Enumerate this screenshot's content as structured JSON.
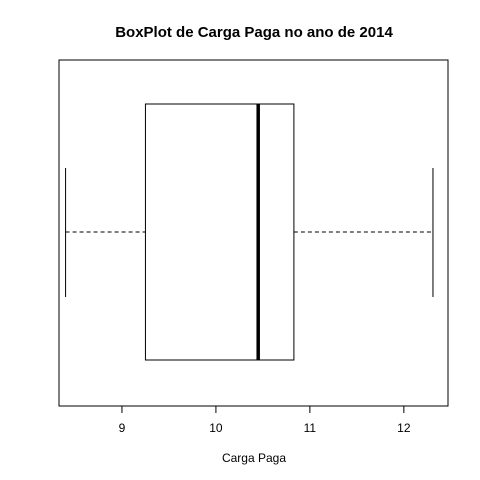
{
  "chart_data": {
    "type": "boxplot",
    "orientation": "horizontal",
    "title": "BoxPlot de Carga Paga no ano de 2014",
    "xlabel": "Carga Paga",
    "ylabel": "",
    "xlim": [
      8.33,
      12.47
    ],
    "ticks": [
      9,
      10,
      11,
      12
    ],
    "tick_labels": [
      "9",
      "10",
      "11",
      "12"
    ],
    "grid": false,
    "legend": false,
    "stats": {
      "min": 8.4,
      "q1": 9.25,
      "median": 10.45,
      "q3": 10.83,
      "max": 12.31
    }
  }
}
